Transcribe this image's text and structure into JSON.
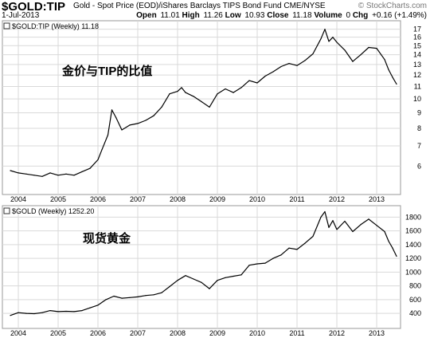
{
  "header": {
    "symbol": "$GOLD:TIP",
    "description": "Gold - Spot Price (EOD)/iShares Barclays TIPS Bond Fund CME/NYSE",
    "brand": "© StockCharts.com",
    "date": "1-Jul-2013",
    "open_label": "Open",
    "open": "11.01",
    "high_label": "High",
    "high": "11.26",
    "low_label": "Low",
    "low": "10.93",
    "close_label": "Close",
    "close": "11.18",
    "volume_label": "Volume",
    "volume": "0",
    "chg_label": "Chg",
    "chg": "+0.16 (+1.49%)"
  },
  "colors": {
    "line": "#000000",
    "grid": "#d9d9d9",
    "frame": "#999999",
    "text": "#000000"
  },
  "chart_data": [
    {
      "type": "line",
      "title": "$GOLD:TIP (Weekly) 11.18",
      "annotation": "金价与TIP的比值",
      "x_ticks": [
        "2004",
        "2005",
        "2006",
        "2007",
        "2008",
        "2009",
        "2010",
        "2011",
        "2012",
        "2013"
      ],
      "y_ticks": [
        6,
        7,
        8,
        9,
        10,
        11,
        12,
        13,
        14,
        15,
        16,
        17
      ],
      "ylim": [
        5.2,
        17.7
      ],
      "grid": true,
      "series": [
        {
          "x": [
            2003.8,
            2004.0,
            2004.2,
            2004.4,
            2004.6,
            2004.8,
            2005.0,
            2005.2,
            2005.4,
            2005.6,
            2005.8,
            2006.0,
            2006.1,
            2006.25,
            2006.35,
            2006.45,
            2006.6,
            2006.8,
            2007.0,
            2007.2,
            2007.4,
            2007.6,
            2007.8,
            2008.0,
            2008.1,
            2008.2,
            2008.4,
            2008.6,
            2008.8,
            2009.0,
            2009.2,
            2009.4,
            2009.6,
            2009.8,
            2010.0,
            2010.2,
            2010.4,
            2010.6,
            2010.8,
            2011.0,
            2011.2,
            2011.4,
            2011.6,
            2011.7,
            2011.8,
            2011.9,
            2012.0,
            2012.2,
            2012.4,
            2012.6,
            2012.8,
            2013.0,
            2013.2,
            2013.3,
            2013.4,
            2013.5
          ],
          "y": [
            5.8,
            5.7,
            5.65,
            5.6,
            5.55,
            5.7,
            5.6,
            5.65,
            5.6,
            5.75,
            5.9,
            6.3,
            6.8,
            7.6,
            9.2,
            8.7,
            7.9,
            8.2,
            8.3,
            8.5,
            8.8,
            9.4,
            10.4,
            10.6,
            10.9,
            10.5,
            10.2,
            9.8,
            9.4,
            10.4,
            10.8,
            10.5,
            10.9,
            11.5,
            11.3,
            11.9,
            12.3,
            12.8,
            13.1,
            12.9,
            13.4,
            14.1,
            15.8,
            17.0,
            15.5,
            16.0,
            15.4,
            14.5,
            13.3,
            14.0,
            14.8,
            14.7,
            13.5,
            12.5,
            11.8,
            11.2
          ]
        }
      ]
    },
    {
      "type": "line",
      "title": "$GOLD (Weekly) 1252.20",
      "annotation": "现货黄金",
      "x_ticks": [
        "2004",
        "2005",
        "2006",
        "2007",
        "2008",
        "2009",
        "2010",
        "2011",
        "2012",
        "2013"
      ],
      "y_ticks": [
        400,
        600,
        800,
        1000,
        1200,
        1400,
        1600,
        1800
      ],
      "ylim": [
        320,
        1920
      ],
      "grid": true,
      "series": [
        {
          "x": [
            2003.8,
            2004.0,
            2004.2,
            2004.4,
            2004.6,
            2004.8,
            2005.0,
            2005.2,
            2005.4,
            2005.6,
            2005.8,
            2006.0,
            2006.2,
            2006.4,
            2006.6,
            2006.8,
            2007.0,
            2007.2,
            2007.4,
            2007.6,
            2007.8,
            2008.0,
            2008.2,
            2008.4,
            2008.6,
            2008.8,
            2009.0,
            2009.2,
            2009.4,
            2009.6,
            2009.8,
            2010.0,
            2010.2,
            2010.4,
            2010.6,
            2010.8,
            2011.0,
            2011.2,
            2011.4,
            2011.6,
            2011.7,
            2011.8,
            2011.9,
            2012.0,
            2012.2,
            2012.4,
            2012.6,
            2012.8,
            2013.0,
            2013.2,
            2013.3,
            2013.4,
            2013.5
          ],
          "y": [
            370,
            410,
            400,
            395,
            410,
            440,
            425,
            430,
            425,
            440,
            480,
            520,
            600,
            650,
            620,
            630,
            640,
            660,
            670,
            700,
            790,
            880,
            950,
            900,
            850,
            760,
            880,
            920,
            940,
            960,
            1100,
            1120,
            1130,
            1200,
            1250,
            1350,
            1330,
            1420,
            1520,
            1800,
            1880,
            1650,
            1750,
            1620,
            1740,
            1590,
            1690,
            1770,
            1680,
            1590,
            1450,
            1350,
            1230
          ]
        }
      ]
    }
  ]
}
